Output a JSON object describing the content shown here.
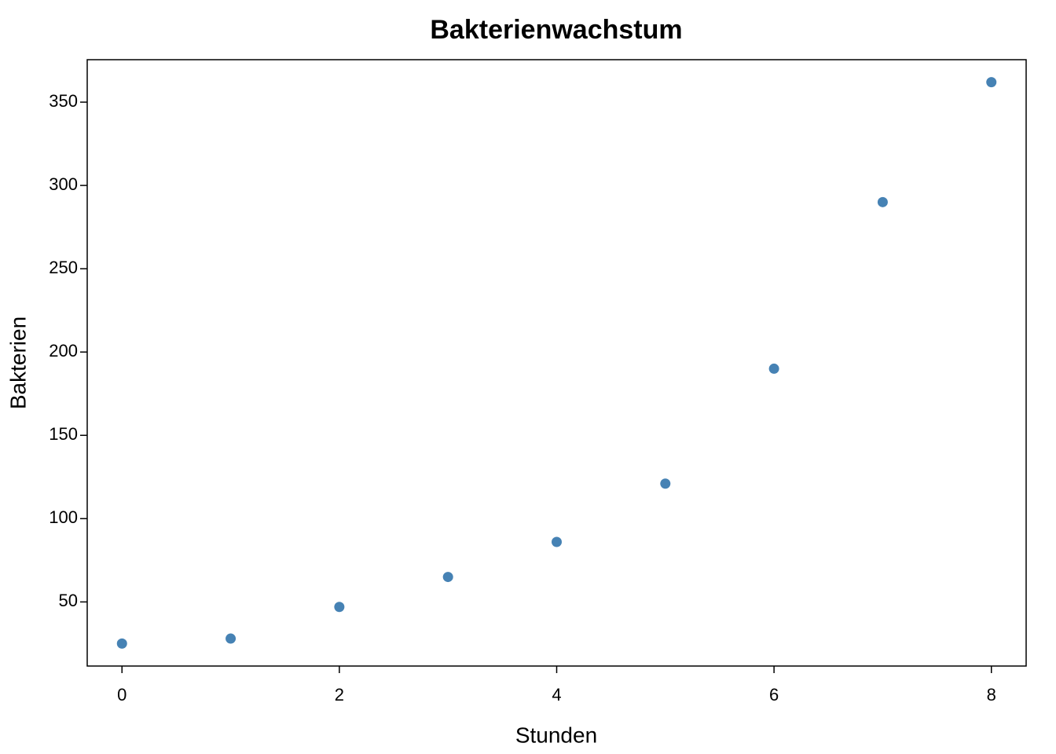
{
  "chart_data": {
    "type": "scatter",
    "title": "Bakterienwachstum",
    "x_label": "Stunden",
    "y_label": "Bakterien",
    "x": [
      0,
      1,
      2,
      3,
      4,
      5,
      6,
      7,
      8
    ],
    "series": [
      {
        "color": "#4682b4",
        "values": [
          25,
          28,
          47,
          65,
          86,
          121,
          190,
          290,
          362
        ]
      }
    ],
    "xlim": [
      -0.32,
      8.32
    ],
    "ylim": [
      11.52,
      375.48
    ],
    "xticks": [
      0,
      2,
      4,
      6,
      8
    ],
    "yticks": [
      50,
      100,
      150,
      200,
      250,
      300,
      350
    ]
  }
}
